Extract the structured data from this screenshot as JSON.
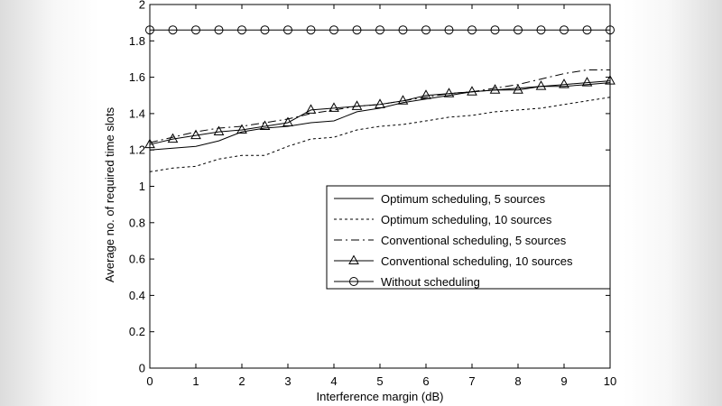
{
  "chart_data": {
    "type": "line",
    "title": "",
    "xlabel": "Interference margin (dB)",
    "ylabel": "Average no. of required time slots",
    "xlim": [
      0,
      10
    ],
    "ylim": [
      0,
      2
    ],
    "xticks": [
      0,
      1,
      2,
      3,
      4,
      5,
      6,
      7,
      8,
      9,
      10
    ],
    "yticks": [
      0,
      0.2,
      0.4,
      0.6,
      0.8,
      1,
      1.2,
      1.4,
      1.6,
      1.8,
      2
    ],
    "ytick_labels": [
      "0",
      "0.2",
      "0.4",
      "0.6",
      "0.8",
      "1",
      "1.2",
      "1.4",
      "1.6",
      "1.8",
      "2"
    ],
    "grid": false,
    "legend_position": "lower-right",
    "x": [
      0,
      0.5,
      1,
      1.5,
      2,
      2.5,
      3,
      3.5,
      4,
      4.5,
      5,
      5.5,
      6,
      6.5,
      7,
      7.5,
      8,
      8.5,
      9,
      9.5,
      10
    ],
    "series": [
      {
        "name": "Optimum scheduling, 5 sources",
        "style": "solid",
        "marker": "none",
        "values": [
          1.2,
          1.21,
          1.22,
          1.25,
          1.3,
          1.32,
          1.33,
          1.35,
          1.36,
          1.41,
          1.43,
          1.46,
          1.48,
          1.5,
          1.52,
          1.53,
          1.54,
          1.55,
          1.55,
          1.56,
          1.57
        ]
      },
      {
        "name": "Optimum scheduling, 10 sources",
        "style": "dotted",
        "marker": "none",
        "values": [
          1.08,
          1.1,
          1.11,
          1.15,
          1.17,
          1.17,
          1.22,
          1.26,
          1.27,
          1.31,
          1.33,
          1.34,
          1.36,
          1.38,
          1.39,
          1.41,
          1.42,
          1.43,
          1.45,
          1.47,
          1.49
        ]
      },
      {
        "name": "Conventional scheduling, 5 sources",
        "style": "dashdot",
        "marker": "none",
        "values": [
          1.24,
          1.27,
          1.3,
          1.32,
          1.33,
          1.35,
          1.37,
          1.4,
          1.42,
          1.44,
          1.45,
          1.47,
          1.49,
          1.51,
          1.52,
          1.54,
          1.56,
          1.59,
          1.62,
          1.64,
          1.64
        ]
      },
      {
        "name": "Conventional scheduling, 10 sources",
        "style": "solid",
        "marker": "triangle",
        "values": [
          1.23,
          1.26,
          1.28,
          1.3,
          1.31,
          1.33,
          1.35,
          1.42,
          1.43,
          1.44,
          1.45,
          1.47,
          1.5,
          1.51,
          1.52,
          1.53,
          1.53,
          1.55,
          1.56,
          1.57,
          1.58
        ]
      },
      {
        "name": "Without scheduling",
        "style": "solid",
        "marker": "circle",
        "values": [
          1.86,
          1.86,
          1.86,
          1.86,
          1.86,
          1.86,
          1.86,
          1.86,
          1.86,
          1.86,
          1.86,
          1.86,
          1.86,
          1.86,
          1.86,
          1.86,
          1.86,
          1.86,
          1.86,
          1.86,
          1.86
        ]
      }
    ]
  }
}
